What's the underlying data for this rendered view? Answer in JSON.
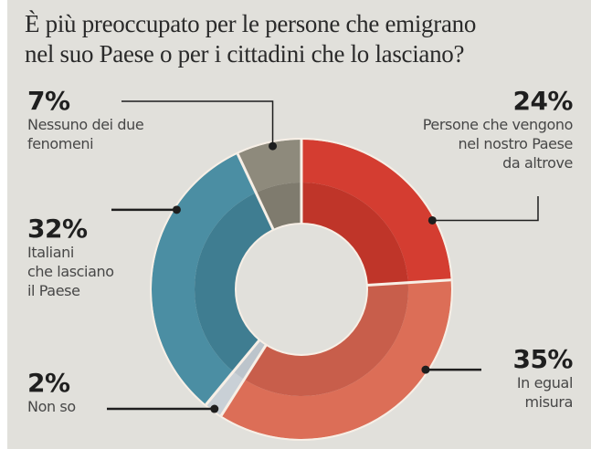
{
  "title_lines": [
    "È più preoccupato per le persone che emigrano",
    "nel suo Paese o per i cittadini che lo lasciano?"
  ],
  "chart_data": {
    "type": "pie",
    "variant": "donut",
    "title": "È più preoccupato per le persone che emigrano nel suo Paese o per i cittadini che lo lasciano?",
    "start": "top",
    "direction": "clockwise",
    "slices": [
      {
        "key": "venuti",
        "value": 24,
        "label": "24%",
        "description": [
          "Persone che vengono",
          "nel nostro Paese",
          "da altrove"
        ],
        "color": "#d43d31",
        "inner_color": "#bf3529"
      },
      {
        "key": "egual",
        "value": 35,
        "label": "35%",
        "description": [
          "In egual",
          "misura"
        ],
        "color": "#dc6e57",
        "inner_color": "#c85e4b"
      },
      {
        "key": "nonso",
        "value": 2,
        "label": "2%",
        "description": [
          "Non so"
        ],
        "color": "#c9d0d6",
        "inner_color": "#bcc4cb"
      },
      {
        "key": "italiani",
        "value": 32,
        "label": "32%",
        "description": [
          "Italiani",
          "che lasciano",
          "il Paese"
        ],
        "color": "#4b8ea3",
        "inner_color": "#3f7d91"
      },
      {
        "key": "nessuno",
        "value": 7,
        "label": "7%",
        "description": [
          "Nessuno dei due",
          "fenomeni"
        ],
        "color": "#8e8a7c",
        "inner_color": "#7f7b6e"
      }
    ],
    "legend": "callouts"
  },
  "colors": {
    "background": "#e1e0db",
    "leader_line": "#1e1e1e",
    "separator": "#f7efe6"
  }
}
